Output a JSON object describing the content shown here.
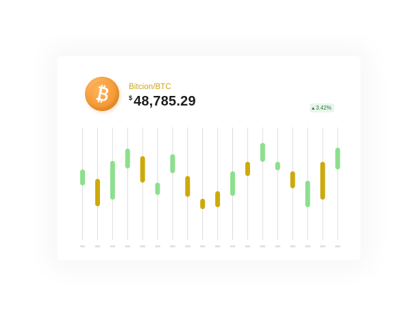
{
  "asset": {
    "pair_name": "Bitcion/BTC",
    "currency_symbol": "$",
    "price": "48,785.29",
    "change": "3.42%"
  },
  "colors": {
    "up": "#8ddf8d",
    "down": "#cdaa0c",
    "wick": "#dcdcdc",
    "axis_tick": "#e2e2e2",
    "accent": "#c8a415"
  },
  "chart_data": {
    "type": "candlestick",
    "title": "Bitcion/BTC",
    "ylim": [
      0,
      100
    ],
    "candles": [
      {
        "open": 43,
        "close": 60,
        "direction": "up"
      },
      {
        "open": 50,
        "close": 21,
        "direction": "down"
      },
      {
        "open": 28,
        "close": 69,
        "direction": "up"
      },
      {
        "open": 61,
        "close": 82,
        "direction": "up"
      },
      {
        "open": 74,
        "close": 46,
        "direction": "down"
      },
      {
        "open": 33,
        "close": 46,
        "direction": "up"
      },
      {
        "open": 56,
        "close": 76,
        "direction": "up"
      },
      {
        "open": 53,
        "close": 31,
        "direction": "down"
      },
      {
        "open": 29,
        "close": 18,
        "direction": "down"
      },
      {
        "open": 37,
        "close": 20,
        "direction": "down"
      },
      {
        "open": 32,
        "close": 58,
        "direction": "up"
      },
      {
        "open": 68,
        "close": 53,
        "direction": "down"
      },
      {
        "open": 68,
        "close": 88,
        "direction": "up"
      },
      {
        "open": 59,
        "close": 68,
        "direction": "up"
      },
      {
        "open": 58,
        "close": 40,
        "direction": "down"
      },
      {
        "open": 20,
        "close": 48,
        "direction": "up"
      },
      {
        "open": 68,
        "close": 28,
        "direction": "down"
      },
      {
        "open": 60,
        "close": 83,
        "direction": "up"
      }
    ]
  }
}
